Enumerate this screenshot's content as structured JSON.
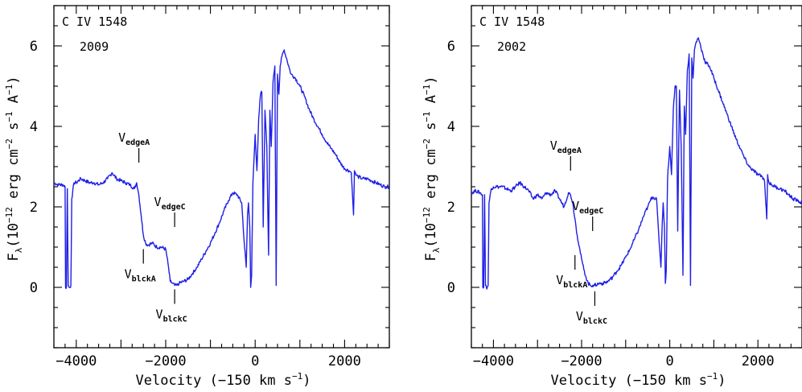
{
  "chart_data": [
    {
      "type": "line",
      "ion_label": "C IV 1548",
      "year_label": "2009",
      "xlabel": "Velocity (−150 km s",
      "xlabel_sup": "−1",
      "xlabel_end": ")",
      "ylabel_main": "F",
      "ylabel_sub": "λ",
      "ylabel_rest": "(10",
      "ylabel_exp": "−12",
      "ylabel_units": " erg cm",
      "ylabel_exp2": "−2",
      "ylabel_s": " s",
      "ylabel_exp3": "−1",
      "ylabel_A": " A",
      "ylabel_exp4": "−1",
      "ylabel_close": ")",
      "xlim": [
        -4500,
        3000
      ],
      "ylim": [
        -1.5,
        7.0
      ],
      "xticks": [
        -4000,
        -2000,
        0,
        2000
      ],
      "xtick_labels": [
        "−4000",
        "−2000",
        "0",
        "2000"
      ],
      "yticks": [
        0,
        2,
        4,
        6
      ],
      "ytick_labels": [
        "0",
        "2",
        "4",
        "6"
      ],
      "grid": false,
      "color": "#1f1fe6",
      "markers": [
        {
          "label": "V",
          "sub": "edgeA",
          "x": -2600,
          "y": 3.1,
          "position": "above"
        },
        {
          "label": "V",
          "sub": "edgeC",
          "x": -1800,
          "y": 1.5,
          "position": "above"
        },
        {
          "label": "V",
          "sub": "blckA",
          "x": -2500,
          "y": 0.95,
          "position": "below"
        },
        {
          "label": "V",
          "sub": "blckC",
          "x": -1800,
          "y": -0.05,
          "position": "below"
        }
      ],
      "x": [
        -4500,
        -4400,
        -4300,
        -4250,
        -4240,
        -4220,
        -4200,
        -4180,
        -4160,
        -4140,
        -4120,
        -4100,
        -4050,
        -4000,
        -3900,
        -3800,
        -3700,
        -3600,
        -3500,
        -3400,
        -3300,
        -3200,
        -3100,
        -3000,
        -2900,
        -2800,
        -2700,
        -2650,
        -2600,
        -2550,
        -2500,
        -2450,
        -2400,
        -2300,
        -2200,
        -2100,
        -2000,
        -1950,
        -1900,
        -1850,
        -1800,
        -1750,
        -1700,
        -1600,
        -1500,
        -1400,
        -1300,
        -1200,
        -1100,
        -1000,
        -900,
        -800,
        -700,
        -600,
        -500,
        -400,
        -300,
        -250,
        -200,
        -170,
        -150,
        -120,
        -100,
        -80,
        -50,
        0,
        40,
        80,
        120,
        150,
        180,
        220,
        260,
        300,
        330,
        360,
        400,
        440,
        470,
        500,
        530,
        560,
        600,
        650,
        700,
        750,
        800,
        900,
        1000,
        1100,
        1200,
        1300,
        1400,
        1500,
        1600,
        1700,
        1800,
        1900,
        2000,
        2100,
        2150,
        2200,
        2220,
        2250,
        2300,
        2400,
        2500,
        2600,
        2700,
        2800,
        2900,
        3000
      ],
      "y": [
        2.6,
        2.55,
        2.55,
        2.5,
        0.0,
        0.0,
        2.45,
        0.05,
        0.0,
        0.0,
        0.05,
        2.2,
        2.6,
        2.6,
        2.7,
        2.65,
        2.6,
        2.6,
        2.55,
        2.6,
        2.7,
        2.85,
        2.7,
        2.65,
        2.6,
        2.55,
        2.45,
        2.6,
        2.3,
        1.8,
        1.3,
        1.1,
        1.05,
        1.1,
        1.0,
        1.0,
        0.95,
        0.6,
        0.15,
        0.1,
        0.05,
        0.05,
        0.1,
        0.15,
        0.2,
        0.35,
        0.5,
        0.7,
        0.9,
        1.1,
        1.35,
        1.6,
        1.9,
        2.15,
        2.35,
        2.3,
        2.1,
        1.2,
        0.5,
        1.8,
        2.1,
        1.5,
        0.0,
        0.3,
        2.6,
        3.8,
        2.9,
        4.2,
        4.8,
        4.85,
        1.5,
        4.4,
        3.5,
        0.8,
        4.4,
        3.5,
        5.1,
        5.5,
        0.05,
        5.3,
        4.8,
        5.5,
        5.75,
        5.9,
        5.7,
        5.5,
        5.3,
        5.2,
        5.0,
        4.75,
        4.45,
        4.2,
        4.0,
        3.8,
        3.6,
        3.45,
        3.3,
        3.1,
        2.95,
        2.9,
        2.85,
        1.8,
        2.9,
        2.8,
        2.75,
        2.7,
        2.7,
        2.65,
        2.6,
        2.55,
        2.5,
        2.5
      ]
    },
    {
      "type": "line",
      "ion_label": "C IV 1548",
      "year_label": "2002",
      "xlabel": "Velocity (−150 km s",
      "xlabel_sup": "−1",
      "xlabel_end": ")",
      "ylabel_main": "F",
      "ylabel_sub": "λ",
      "ylabel_rest": "(10",
      "ylabel_exp": "−12",
      "ylabel_units": " erg cm",
      "ylabel_exp2": "−2",
      "ylabel_s": " s",
      "ylabel_exp3": "−1",
      "ylabel_A": " A",
      "ylabel_exp4": "−1",
      "ylabel_close": ")",
      "xlim": [
        -4500,
        3000
      ],
      "ylim": [
        -1.5,
        7.0
      ],
      "xticks": [
        -4000,
        -2000,
        0,
        2000
      ],
      "xtick_labels": [
        "−4000",
        "−2000",
        "0",
        "2000"
      ],
      "yticks": [
        0,
        2,
        4,
        6
      ],
      "ytick_labels": [
        "0",
        "2",
        "4",
        "6"
      ],
      "grid": false,
      "color": "#1f1fe6",
      "markers": [
        {
          "label": "V",
          "sub": "edgeA",
          "x": -2250,
          "y": 2.9,
          "position": "above"
        },
        {
          "label": "V",
          "sub": "edgeC",
          "x": -1750,
          "y": 1.4,
          "position": "above"
        },
        {
          "label": "V",
          "sub": "blckA",
          "x": -2150,
          "y": 0.8,
          "position": "below"
        },
        {
          "label": "V",
          "sub": "blckC",
          "x": -1700,
          "y": -0.1,
          "position": "below"
        }
      ],
      "x": [
        -4500,
        -4400,
        -4300,
        -4250,
        -4240,
        -4220,
        -4200,
        -4180,
        -4160,
        -4140,
        -4120,
        -4100,
        -4050,
        -4000,
        -3900,
        -3800,
        -3700,
        -3600,
        -3500,
        -3400,
        -3300,
        -3200,
        -3100,
        -3000,
        -2900,
        -2800,
        -2700,
        -2600,
        -2500,
        -2400,
        -2300,
        -2250,
        -2200,
        -2150,
        -2100,
        -2050,
        -2000,
        -1950,
        -1900,
        -1850,
        -1800,
        -1750,
        -1700,
        -1600,
        -1500,
        -1400,
        -1300,
        -1200,
        -1100,
        -1000,
        -900,
        -800,
        -700,
        -600,
        -500,
        -400,
        -300,
        -250,
        -200,
        -170,
        -150,
        -120,
        -100,
        -80,
        -50,
        0,
        40,
        80,
        120,
        150,
        180,
        220,
        260,
        300,
        330,
        360,
        400,
        440,
        470,
        500,
        530,
        560,
        600,
        650,
        700,
        750,
        800,
        900,
        1000,
        1100,
        1200,
        1300,
        1400,
        1500,
        1600,
        1700,
        1800,
        1900,
        2000,
        2100,
        2150,
        2200,
        2220,
        2250,
        2300,
        2400,
        2500,
        2600,
        2700,
        2800,
        2900,
        3000
      ],
      "y": [
        2.35,
        2.4,
        2.35,
        2.3,
        0.0,
        0.0,
        2.3,
        0.05,
        0.0,
        0.0,
        0.05,
        2.1,
        2.45,
        2.5,
        2.5,
        2.5,
        2.45,
        2.4,
        2.5,
        2.6,
        2.5,
        2.4,
        2.2,
        2.3,
        2.2,
        2.35,
        2.3,
        2.4,
        2.2,
        2.0,
        2.35,
        2.3,
        2.1,
        1.7,
        1.3,
        1.0,
        0.7,
        0.45,
        0.25,
        0.1,
        0.05,
        0.05,
        0.05,
        0.1,
        0.1,
        0.15,
        0.25,
        0.4,
        0.55,
        0.75,
        0.95,
        1.2,
        1.45,
        1.75,
        2.0,
        2.25,
        2.2,
        1.3,
        0.5,
        1.6,
        2.1,
        1.5,
        0.1,
        0.4,
        2.7,
        3.5,
        2.8,
        4.4,
        5.0,
        5.0,
        1.4,
        4.9,
        3.5,
        0.3,
        4.5,
        3.8,
        5.4,
        5.8,
        0.05,
        5.7,
        5.2,
        5.9,
        6.1,
        6.2,
        6.0,
        5.8,
        5.6,
        5.5,
        5.2,
        4.9,
        4.6,
        4.3,
        4.0,
        3.7,
        3.45,
        3.2,
        3.0,
        2.9,
        2.8,
        2.75,
        2.65,
        1.7,
        2.8,
        2.6,
        2.55,
        2.5,
        2.45,
        2.4,
        2.3,
        2.2,
        2.15,
        2.1
      ]
    }
  ]
}
